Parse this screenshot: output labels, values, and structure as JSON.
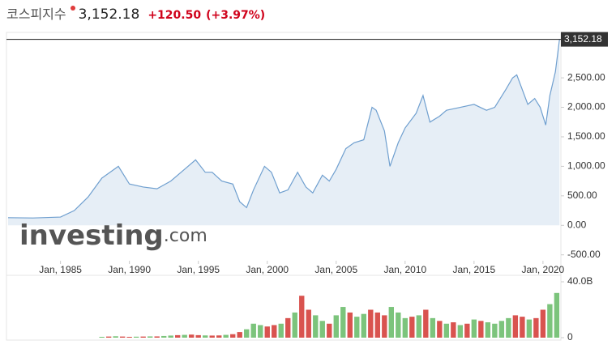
{
  "header": {
    "name": "코스피지수",
    "price": "3,152.18",
    "change": "+120.50",
    "change_pct": "(+3.97%)"
  },
  "chart_data": [
    {
      "type": "area",
      "color": "#6f9fcf",
      "fill": "#e6eef6",
      "x": [
        1981.2,
        1983,
        1985,
        1986,
        1987,
        1988,
        1989.2,
        1990,
        1991,
        1992,
        1993,
        1994,
        1994.8,
        1995.5,
        1996,
        1996.7,
        1997.5,
        1998,
        1998.5,
        1999,
        1999.8,
        2000.3,
        2000.9,
        2001.5,
        2002.2,
        2002.8,
        2003.3,
        2004,
        2004.5,
        2005,
        2005.7,
        2006.3,
        2007,
        2007.6,
        2007.9,
        2008.5,
        2008.9,
        2009.5,
        2010,
        2010.8,
        2011.3,
        2011.8,
        2012.5,
        2013,
        2014,
        2015,
        2015.9,
        2016.5,
        2017.3,
        2017.8,
        2018.1,
        2018.9,
        2019.4,
        2019.8,
        2020.2,
        2020.5,
        2020.9,
        2021.2
      ],
      "values": [
        130,
        125,
        140,
        250,
        480,
        800,
        1000,
        700,
        650,
        620,
        750,
        950,
        1110,
        900,
        900,
        750,
        700,
        400,
        300,
        600,
        1000,
        900,
        550,
        600,
        900,
        650,
        550,
        850,
        750,
        950,
        1300,
        1400,
        1450,
        2000,
        1950,
        1600,
        1000,
        1400,
        1650,
        1900,
        2200,
        1750,
        1850,
        1950,
        2000,
        2050,
        1950,
        2000,
        2300,
        2500,
        2550,
        2050,
        2150,
        2000,
        1700,
        2200,
        2600,
        3152.18
      ],
      "xlim": [
        1981.2,
        2021.3
      ],
      "ylim": [
        -600,
        3270
      ],
      "xticks": [
        {
          "value": 1985,
          "label": "Jan, 1985"
        },
        {
          "value": 1990,
          "label": "Jan, 1990"
        },
        {
          "value": 1995,
          "label": "Jan, 1995"
        },
        {
          "value": 2000,
          "label": "Jan, 2000"
        },
        {
          "value": 2005,
          "label": "Jan, 2005"
        },
        {
          "value": 2010,
          "label": "Jan, 2010"
        },
        {
          "value": 2015,
          "label": "Jan, 2015"
        },
        {
          "value": 2020,
          "label": "Jan, 2020"
        }
      ],
      "yticks": [
        {
          "value": 2500,
          "label": "2,500.00"
        },
        {
          "value": 2000,
          "label": "2,000.00"
        },
        {
          "value": 1500,
          "label": "1,500.00"
        },
        {
          "value": 1000,
          "label": "1,000.00"
        },
        {
          "value": 500,
          "label": "500.00"
        },
        {
          "value": 0,
          "label": "0.00"
        },
        {
          "value": -500,
          "label": "-500.00"
        }
      ],
      "last_value": {
        "value": 3152.18,
        "label": "3,152.18"
      },
      "watermark": [
        "investing",
        ".com"
      ]
    },
    {
      "type": "bar",
      "x": [
        1988,
        1988.5,
        1989,
        1989.5,
        1990,
        1990.5,
        1991,
        1991.5,
        1992,
        1992.5,
        1993,
        1993.5,
        1994,
        1994.5,
        1995,
        1995.5,
        1996,
        1996.5,
        1997,
        1997.5,
        1998,
        1998.5,
        1999,
        1999.5,
        2000,
        2000.5,
        2001,
        2001.5,
        2002,
        2002.5,
        2003,
        2003.5,
        2004,
        2004.5,
        2005,
        2005.5,
        2006,
        2006.5,
        2007,
        2007.5,
        2008,
        2008.5,
        2009,
        2009.5,
        2010,
        2010.5,
        2011,
        2011.5,
        2012,
        2012.5,
        2013,
        2013.5,
        2014,
        2014.5,
        2015,
        2015.5,
        2016,
        2016.5,
        2017,
        2017.5,
        2018,
        2018.5,
        2019,
        2019.5,
        2020,
        2020.5,
        2021
      ],
      "values": [
        0.6,
        0.8,
        1.0,
        0.8,
        0.6,
        0.7,
        0.8,
        0.9,
        0.9,
        1.2,
        1.5,
        1.8,
        2.0,
        2.2,
        1.8,
        1.6,
        1.5,
        1.6,
        2.0,
        2.5,
        4,
        6,
        10,
        9,
        8,
        9,
        10,
        14,
        18,
        30,
        20,
        16,
        12,
        10,
        16,
        22,
        18,
        15,
        17,
        20,
        18,
        16,
        22,
        18,
        14,
        15,
        16,
        20,
        14,
        12,
        10,
        11,
        9,
        10,
        13,
        12,
        11,
        10,
        12,
        14,
        16,
        15,
        13,
        14,
        20,
        24,
        32
      ],
      "colors": [
        "#7cc47c",
        "#d9534f",
        "#7cc47c",
        "#d9534f",
        "#d9534f",
        "#7cc47c",
        "#d9534f",
        "#7cc47c",
        "#d9534f",
        "#7cc47c",
        "#7cc47c",
        "#d9534f",
        "#7cc47c",
        "#d9534f",
        "#d9534f",
        "#7cc47c",
        "#d9534f",
        "#d9534f",
        "#7cc47c",
        "#d9534f",
        "#d9534f",
        "#7cc47c",
        "#7cc47c",
        "#7cc47c",
        "#d9534f",
        "#d9534f",
        "#7cc47c",
        "#d9534f",
        "#7cc47c",
        "#d9534f",
        "#d9534f",
        "#7cc47c",
        "#7cc47c",
        "#d9534f",
        "#7cc47c",
        "#7cc47c",
        "#d9534f",
        "#7cc47c",
        "#7cc47c",
        "#d9534f",
        "#d9534f",
        "#d9534f",
        "#7cc47c",
        "#7cc47c",
        "#7cc47c",
        "#d9534f",
        "#7cc47c",
        "#d9534f",
        "#7cc47c",
        "#d9534f",
        "#7cc47c",
        "#d9534f",
        "#7cc47c",
        "#d9534f",
        "#7cc47c",
        "#d9534f",
        "#7cc47c",
        "#7cc47c",
        "#7cc47c",
        "#7cc47c",
        "#d9534f",
        "#d9534f",
        "#7cc47c",
        "#d9534f",
        "#d9534f",
        "#7cc47c",
        "#7cc47c"
      ],
      "xlim": [
        1981.2,
        2021.3
      ],
      "ylim": [
        0,
        40
      ],
      "yticks": [
        {
          "value": 40,
          "label": "40.0B"
        },
        0
      ]
    }
  ]
}
